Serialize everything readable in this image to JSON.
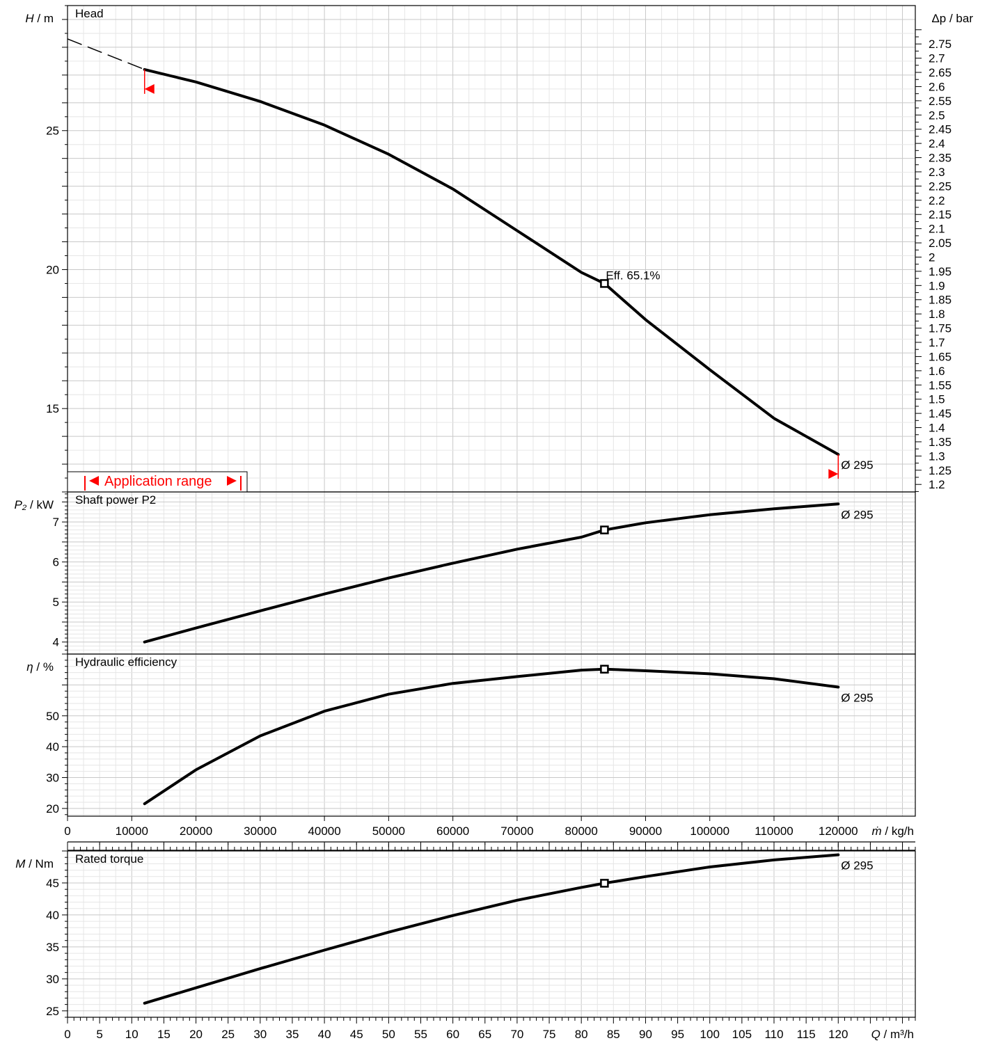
{
  "chart_data": {
    "type": "line",
    "operating_point": {
      "q_m3h": 83.6,
      "annotation": "Eff.  65.1%"
    },
    "diameter_label": "Ø 295",
    "x_axes": {
      "mass_flow": {
        "label_var": "ṁ",
        "label_unit": " / kg/h",
        "range": [
          0,
          132000
        ],
        "ticks": [
          "0",
          "10000",
          "20000",
          "30000",
          "40000",
          "50000",
          "60000",
          "70000",
          "80000",
          "90000",
          "100000",
          "110000",
          "120000"
        ]
      },
      "volume_flow": {
        "label_var": "Q",
        "label_unit": " / m³/h",
        "range": [
          0,
          132
        ],
        "ticks": [
          "0",
          "5",
          "10",
          "15",
          "20",
          "25",
          "30",
          "35",
          "40",
          "45",
          "50",
          "55",
          "60",
          "65",
          "70",
          "75",
          "80",
          "85",
          "90",
          "95",
          "100",
          "105",
          "110",
          "115",
          "120"
        ]
      }
    },
    "panels": [
      {
        "id": "head",
        "title": "Head",
        "ylabel_var": "H",
        "ylabel_unit": " / m",
        "ylim": [
          12,
          29.5
        ],
        "yticks": [
          "15",
          "20",
          "25"
        ],
        "y2label_var": "Δp",
        "y2label_unit": " / bar",
        "y2ticks": [
          "1.2",
          "1.25",
          "1.3",
          "1.35",
          "1.4",
          "1.45",
          "1.5",
          "1.55",
          "1.6",
          "1.65",
          "1.7",
          "1.75",
          "1.8",
          "1.85",
          "1.9",
          "1.95",
          "2",
          "2.05",
          "2.1",
          "2.15",
          "2.2",
          "2.25",
          "2.3",
          "2.35",
          "2.4",
          "2.45",
          "2.5",
          "2.55",
          "2.6",
          "2.65",
          "2.7",
          "2.75"
        ],
        "dashed_extension": {
          "x": [
            0,
            12
          ],
          "y": [
            28.3,
            27.2
          ]
        },
        "series": [
          {
            "name": "Ø 295",
            "x": [
              12,
              20,
              30,
              40,
              50,
              60,
              70,
              80,
              83.6,
              90,
              100,
              110,
              120
            ],
            "y": [
              27.2,
              26.75,
              26.05,
              25.2,
              24.15,
              22.9,
              21.4,
              19.9,
              19.5,
              18.2,
              16.4,
              14.65,
              13.35
            ]
          }
        ],
        "application_range": {
          "label": "Application range",
          "q_min": 12,
          "q_max": 120
        }
      },
      {
        "id": "power",
        "title": "Shaft power P2",
        "ylabel_var": "P₂",
        "ylabel_unit": " / kW",
        "ylim": [
          3.7,
          7.75
        ],
        "yticks": [
          "4",
          "5",
          "6",
          "7"
        ],
        "series": [
          {
            "name": "Ø 295",
            "x": [
              12,
              20,
              30,
              40,
              50,
              60,
              70,
              80,
              83.6,
              90,
              100,
              110,
              120
            ],
            "y": [
              4.0,
              4.35,
              4.78,
              5.2,
              5.6,
              5.97,
              6.32,
              6.62,
              6.8,
              6.98,
              7.18,
              7.33,
              7.45
            ]
          }
        ]
      },
      {
        "id": "efficiency",
        "title": "Hydraulic efficiency",
        "ylabel_var": "η",
        "ylabel_unit": " / %",
        "ylim": [
          17.5,
          70
        ],
        "yticks": [
          "20",
          "30",
          "40",
          "50"
        ],
        "series": [
          {
            "name": "Ø 295",
            "x": [
              12,
              20,
              30,
              40,
              50,
              60,
              70,
              80,
              83.6,
              90,
              100,
              110,
              120
            ],
            "y": [
              21.5,
              32.5,
              43.5,
              51.5,
              57,
              60.5,
              62.7,
              64.8,
              65.1,
              64.6,
              63.6,
              62,
              59.3
            ]
          }
        ]
      },
      {
        "id": "torque",
        "title": "Rated torque",
        "ylabel_var": "M",
        "ylabel_unit": " / Nm",
        "ylim": [
          24,
          50
        ],
        "yticks": [
          "25",
          "30",
          "35",
          "40",
          "45"
        ],
        "series": [
          {
            "name": "Ø 295",
            "x": [
              12,
              20,
              30,
              40,
              50,
              60,
              70,
              80,
              83.6,
              90,
              100,
              110,
              120
            ],
            "y": [
              26.2,
              28.6,
              31.6,
              34.5,
              37.3,
              39.9,
              42.3,
              44.3,
              44.95,
              46.0,
              47.5,
              48.6,
              49.4
            ]
          }
        ]
      }
    ]
  }
}
